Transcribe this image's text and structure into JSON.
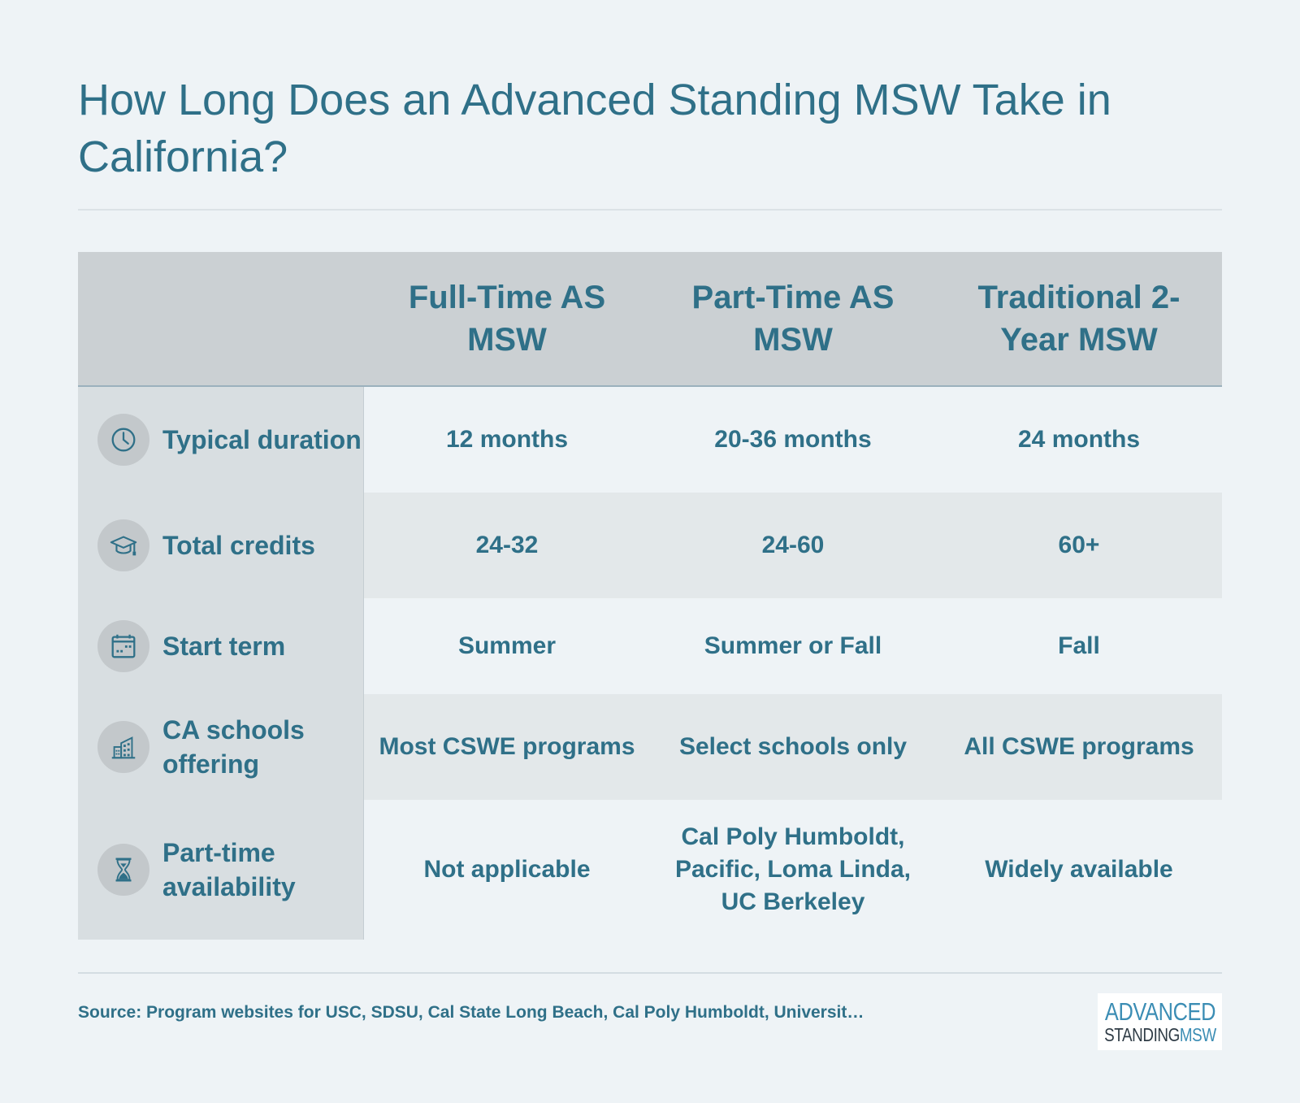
{
  "title": "How Long Does an Advanced Standing MSW Take in California?",
  "columns": [
    "Full-Time AS MSW",
    "Part-Time AS MSW",
    "Traditional 2-Year MSW"
  ],
  "rows": [
    {
      "icon": "clock-icon",
      "label": "Typical duration",
      "values": [
        "12 months",
        "20-36 months",
        "24 months"
      ]
    },
    {
      "icon": "graduation-cap-icon",
      "label": "Total credits",
      "values": [
        "24-32",
        "24-60",
        "60+"
      ]
    },
    {
      "icon": "calendar-icon",
      "label": "Start term",
      "values": [
        "Summer",
        "Summer or Fall",
        "Fall"
      ]
    },
    {
      "icon": "buildings-icon",
      "label": "CA schools offering",
      "values": [
        "Most CSWE programs",
        "Select schools only",
        "All CSWE programs"
      ]
    },
    {
      "icon": "hourglass-icon",
      "label": "Part-time availability",
      "values": [
        "Not applicable",
        "Cal Poly Humboldt, Pacific, Loma Linda, UC Berkeley",
        "Widely available"
      ]
    }
  ],
  "source": "Source: Program websites for USC, SDSU, Cal State Long Beach, Cal Poly Humboldt, Universit…",
  "logo": {
    "line1": "ADVANCED",
    "line2a": "STANDING",
    "line2b": "MSW"
  },
  "colors": {
    "accent": "#2f7088",
    "background": "#eef3f6",
    "header_bg": "#cbd0d3"
  }
}
